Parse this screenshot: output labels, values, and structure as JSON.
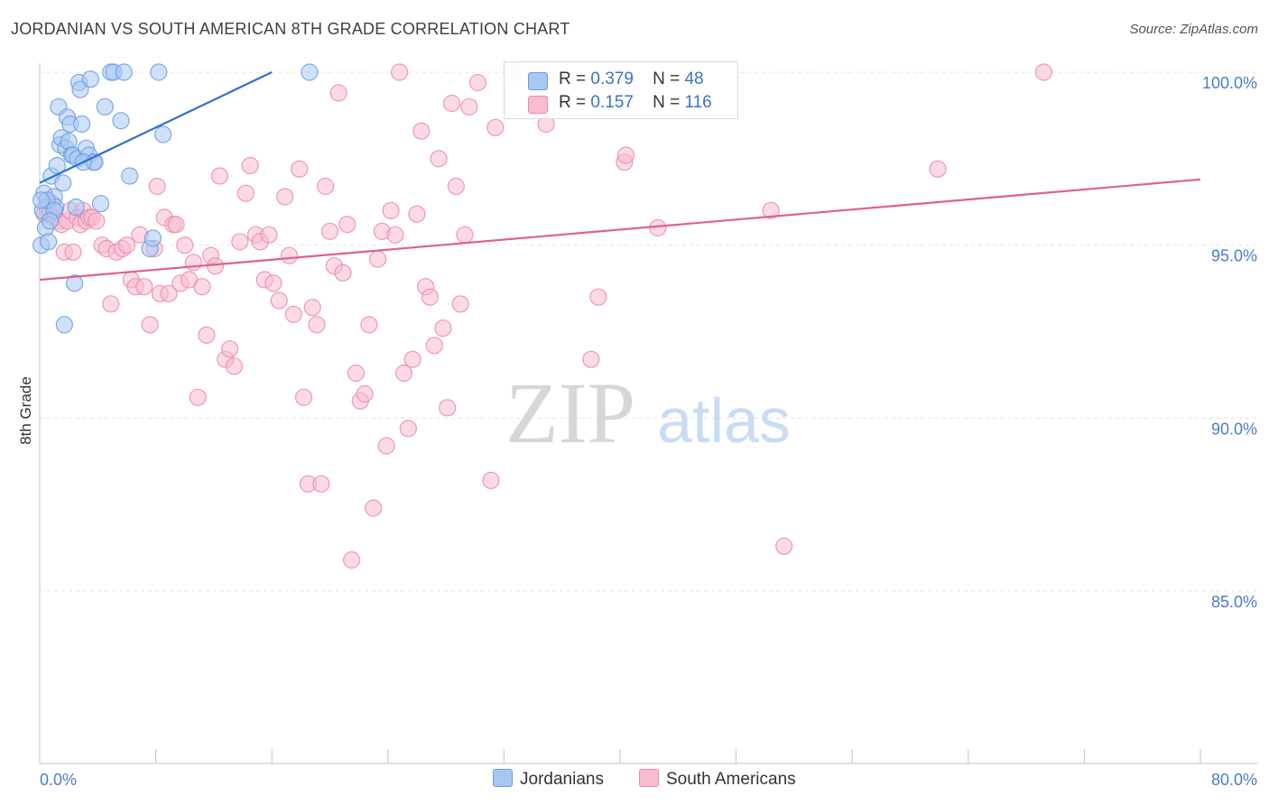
{
  "title": "JORDANIAN VS SOUTH AMERICAN 8TH GRADE CORRELATION CHART",
  "source": "Source: ZipAtlas.com",
  "watermark": {
    "zip": "ZIP",
    "atlas": "atlas"
  },
  "colors": {
    "jordanians_fill": "#a8c8f4",
    "jordanians_stroke": "#6a9be0",
    "jordanians_line": "#2f6fd0",
    "south_fill": "#f7bcd0",
    "south_stroke": "#e98aac",
    "south_line": "#e0608e",
    "tick_label": "#4a7bd0",
    "grid": "#e3e3e3"
  },
  "legend_top": [
    {
      "r_label": "R =",
      "r_value": "0.379",
      "n_label": "N =",
      "n_value": "48"
    },
    {
      "r_label": "R =",
      "r_value": "0.157",
      "n_label": "N =",
      "n_value": "116"
    }
  ],
  "legend_bottom": [
    "Jordanians",
    "South Americans"
  ],
  "chart_data": {
    "type": "scatter",
    "title": "JORDANIAN VS SOUTH AMERICAN 8TH GRADE CORRELATION CHART",
    "xlabel": "",
    "ylabel": "8th Grade",
    "xlim": [
      0,
      80
    ],
    "ylim": [
      80.4,
      100.6
    ],
    "x_tick_labels": [
      "0.0%",
      "80.0%"
    ],
    "y_ticks": [
      85,
      90,
      95,
      100
    ],
    "y_tick_labels": [
      "85.0%",
      "90.0%",
      "95.0%",
      "100.0%"
    ],
    "grid": true,
    "series": [
      {
        "name": "Jordanians",
        "R": 0.379,
        "N": 48,
        "trend": {
          "x": [
            0,
            16
          ],
          "y": [
            96.8,
            100.0
          ]
        },
        "points": [
          [
            0.1,
            95.0
          ],
          [
            0.3,
            96.5
          ],
          [
            0.4,
            95.5
          ],
          [
            0.6,
            95.1
          ],
          [
            0.8,
            97.0
          ],
          [
            1.0,
            96.4
          ],
          [
            1.1,
            96.1
          ],
          [
            1.2,
            97.3
          ],
          [
            1.3,
            99.0
          ],
          [
            1.4,
            97.9
          ],
          [
            1.5,
            98.1
          ],
          [
            1.6,
            96.8
          ],
          [
            1.7,
            92.7
          ],
          [
            1.8,
            97.8
          ],
          [
            1.9,
            98.7
          ],
          [
            2.0,
            98.0
          ],
          [
            2.1,
            98.5
          ],
          [
            2.2,
            97.6
          ],
          [
            2.3,
            97.6
          ],
          [
            2.4,
            93.9
          ],
          [
            2.5,
            96.1
          ],
          [
            2.6,
            97.5
          ],
          [
            2.7,
            99.7
          ],
          [
            2.8,
            99.5
          ],
          [
            2.9,
            98.5
          ],
          [
            3.2,
            97.8
          ],
          [
            3.4,
            97.6
          ],
          [
            3.5,
            99.8
          ],
          [
            3.7,
            97.4
          ],
          [
            3.8,
            97.4
          ],
          [
            4.2,
            96.2
          ],
          [
            4.5,
            99.0
          ],
          [
            4.9,
            100.0
          ],
          [
            5.1,
            100.0
          ],
          [
            5.6,
            98.6
          ],
          [
            5.8,
            100.0
          ],
          [
            6.2,
            97.0
          ],
          [
            7.6,
            94.9
          ],
          [
            7.8,
            95.2
          ],
          [
            8.2,
            100.0
          ],
          [
            8.5,
            98.2
          ],
          [
            18.6,
            100.0
          ],
          [
            0.2,
            96.0
          ],
          [
            0.5,
            96.3
          ],
          [
            1.0,
            96.0
          ],
          [
            0.7,
            95.7
          ],
          [
            3.0,
            97.4
          ],
          [
            0.1,
            96.3
          ]
        ]
      },
      {
        "name": "South Americans",
        "R": 0.157,
        "N": 116,
        "trend": {
          "x": [
            0,
            80
          ],
          "y": [
            94.0,
            96.9
          ]
        },
        "points": [
          [
            0.3,
            95.9
          ],
          [
            0.5,
            96.1
          ],
          [
            0.7,
            95.9
          ],
          [
            0.9,
            96.2
          ],
          [
            1.0,
            95.8
          ],
          [
            1.3,
            95.7
          ],
          [
            1.5,
            95.6
          ],
          [
            1.7,
            94.8
          ],
          [
            1.9,
            95.7
          ],
          [
            2.1,
            96.0
          ],
          [
            2.3,
            94.8
          ],
          [
            2.6,
            95.8
          ],
          [
            2.8,
            95.6
          ],
          [
            3.0,
            96.0
          ],
          [
            3.2,
            95.7
          ],
          [
            3.4,
            95.8
          ],
          [
            3.6,
            95.8
          ],
          [
            3.9,
            95.7
          ],
          [
            4.3,
            95.0
          ],
          [
            4.6,
            94.9
          ],
          [
            4.9,
            93.3
          ],
          [
            5.3,
            94.8
          ],
          [
            5.7,
            94.9
          ],
          [
            6.0,
            95.0
          ],
          [
            6.3,
            94.0
          ],
          [
            6.6,
            93.8
          ],
          [
            6.9,
            95.3
          ],
          [
            7.2,
            93.8
          ],
          [
            7.6,
            92.7
          ],
          [
            7.9,
            94.9
          ],
          [
            8.1,
            96.7
          ],
          [
            8.3,
            93.6
          ],
          [
            8.6,
            95.8
          ],
          [
            8.9,
            93.6
          ],
          [
            9.2,
            95.6
          ],
          [
            9.4,
            95.6
          ],
          [
            9.7,
            93.9
          ],
          [
            10.0,
            95.0
          ],
          [
            10.3,
            94.0
          ],
          [
            10.6,
            94.5
          ],
          [
            10.9,
            90.6
          ],
          [
            11.2,
            93.8
          ],
          [
            11.5,
            92.4
          ],
          [
            11.8,
            94.7
          ],
          [
            12.1,
            94.4
          ],
          [
            12.4,
            97.0
          ],
          [
            12.8,
            91.7
          ],
          [
            13.1,
            92.0
          ],
          [
            13.4,
            91.5
          ],
          [
            13.8,
            95.1
          ],
          [
            14.2,
            96.5
          ],
          [
            14.5,
            97.3
          ],
          [
            14.9,
            95.3
          ],
          [
            15.2,
            95.1
          ],
          [
            15.5,
            94.0
          ],
          [
            15.8,
            95.3
          ],
          [
            16.1,
            93.9
          ],
          [
            16.5,
            93.4
          ],
          [
            16.9,
            96.4
          ],
          [
            17.2,
            94.7
          ],
          [
            17.5,
            93.0
          ],
          [
            17.9,
            97.2
          ],
          [
            18.2,
            90.6
          ],
          [
            18.5,
            88.1
          ],
          [
            18.8,
            93.2
          ],
          [
            19.1,
            92.7
          ],
          [
            19.4,
            88.1
          ],
          [
            19.7,
            96.7
          ],
          [
            20.0,
            95.4
          ],
          [
            20.3,
            94.4
          ],
          [
            20.6,
            99.4
          ],
          [
            20.9,
            94.2
          ],
          [
            21.2,
            95.6
          ],
          [
            21.5,
            85.9
          ],
          [
            21.8,
            91.3
          ],
          [
            22.1,
            90.5
          ],
          [
            22.4,
            90.7
          ],
          [
            22.7,
            92.7
          ],
          [
            23.0,
            87.4
          ],
          [
            23.3,
            94.6
          ],
          [
            23.6,
            95.4
          ],
          [
            23.9,
            89.2
          ],
          [
            24.2,
            96.0
          ],
          [
            24.5,
            95.3
          ],
          [
            24.8,
            100.0
          ],
          [
            25.1,
            91.3
          ],
          [
            25.4,
            89.7
          ],
          [
            25.7,
            91.7
          ],
          [
            26.0,
            95.9
          ],
          [
            26.3,
            98.3
          ],
          [
            26.6,
            93.8
          ],
          [
            26.9,
            93.5
          ],
          [
            27.2,
            92.1
          ],
          [
            27.5,
            97.5
          ],
          [
            27.8,
            92.6
          ],
          [
            28.1,
            90.3
          ],
          [
            28.4,
            99.1
          ],
          [
            28.7,
            96.7
          ],
          [
            29.0,
            93.3
          ],
          [
            29.3,
            95.3
          ],
          [
            29.6,
            99.0
          ],
          [
            30.2,
            99.7
          ],
          [
            31.1,
            88.2
          ],
          [
            31.4,
            98.4
          ],
          [
            32.6,
            100.0
          ],
          [
            34.6,
            98.9
          ],
          [
            34.9,
            98.5
          ],
          [
            38.0,
            91.7
          ],
          [
            38.5,
            93.5
          ],
          [
            40.3,
            97.4
          ],
          [
            40.4,
            97.6
          ],
          [
            42.6,
            95.5
          ],
          [
            50.4,
            96.0
          ],
          [
            51.3,
            86.3
          ],
          [
            61.9,
            97.2
          ],
          [
            69.2,
            100.0
          ]
        ]
      }
    ]
  }
}
